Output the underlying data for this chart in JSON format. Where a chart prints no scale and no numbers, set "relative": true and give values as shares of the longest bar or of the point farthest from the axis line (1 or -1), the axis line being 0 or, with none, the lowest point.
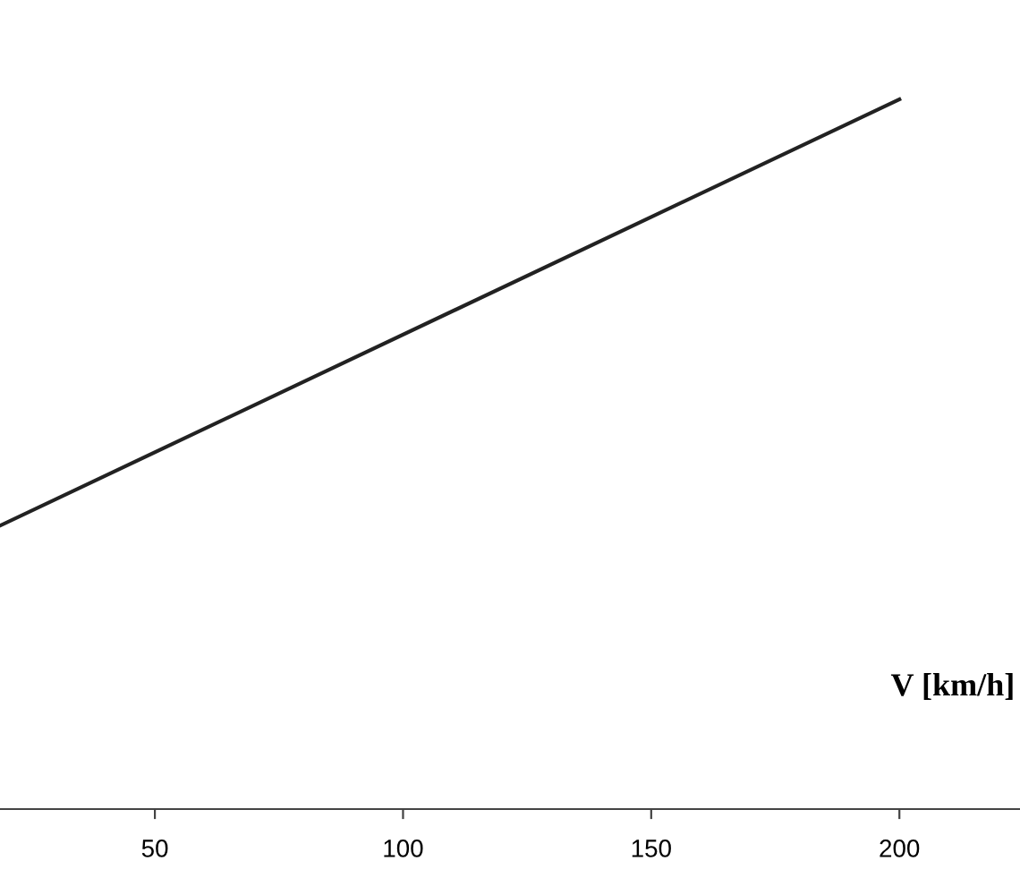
{
  "chart_data": {
    "type": "line",
    "relative": true,
    "xlabel": "V [km/h]",
    "x": [
      19,
      200
    ],
    "series": [
      {
        "color": "#222222",
        "values": [
          0.4,
          1
        ]
      }
    ],
    "xlim": [
      18.8,
      224.3
    ],
    "xticks": [
      50,
      100,
      150,
      200
    ],
    "grid": false,
    "line_style": "solid"
  }
}
